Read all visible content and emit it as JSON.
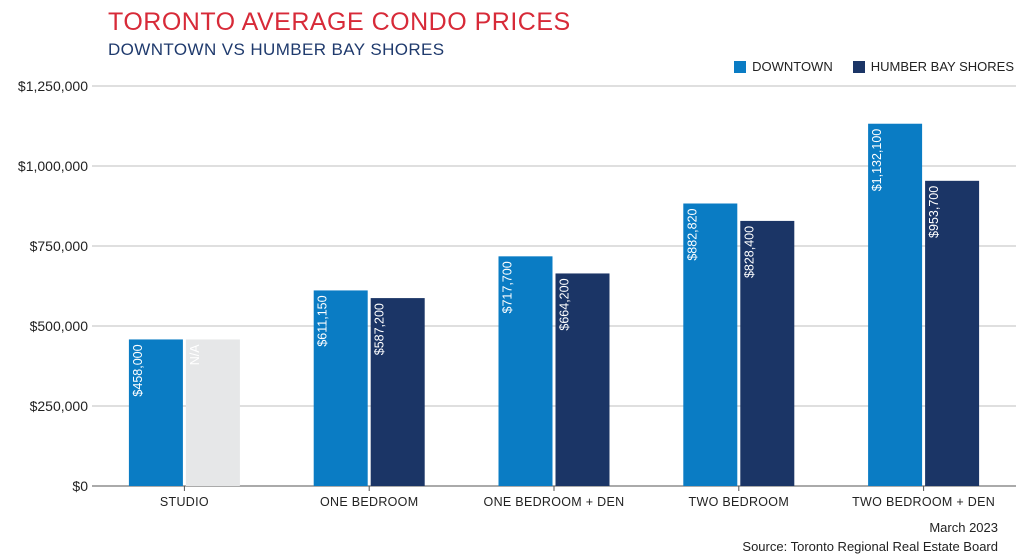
{
  "header": {
    "title": "TORONTO AVERAGE CONDO PRICES",
    "subtitle": "DOWNTOWN VS HUMBER BAY SHORES"
  },
  "footer": {
    "date": "March 2023",
    "source": "Source: Toronto Regional Real Estate Board"
  },
  "colors": {
    "title": "#d72a38",
    "subtitle": "#1f3a6d",
    "downtown": "#0a7cc4",
    "humber": "#1b3566",
    "na": "#e6e7e8",
    "grid": "#bfbfbf"
  },
  "chart_data": {
    "type": "bar",
    "title": "TORONTO AVERAGE CONDO PRICES",
    "subtitle": "DOWNTOWN VS HUMBER BAY SHORES",
    "categories": [
      "STUDIO",
      "ONE BEDROOM",
      "ONE BEDROOM + DEN",
      "TWO BEDROOM",
      "TWO BEDROOM + DEN"
    ],
    "series": [
      {
        "name": "DOWNTOWN",
        "values": [
          458000,
          611150,
          717700,
          882820,
          1132100
        ],
        "labels": [
          "$458,000",
          "$611,150",
          "$717,700",
          "$882,820",
          "$1,132,100"
        ]
      },
      {
        "name": "HUMBER BAY SHORES",
        "values": [
          458000,
          587200,
          664200,
          828400,
          953700
        ],
        "labels": [
          "N/A",
          "$587,200",
          "$664,200",
          "$828,400",
          "$953,700"
        ],
        "not_available": [
          true,
          false,
          false,
          false,
          false
        ]
      }
    ],
    "yticks": [
      0,
      250000,
      500000,
      750000,
      1000000,
      1250000
    ],
    "ytick_labels": [
      "$0",
      "$250,000",
      "$500,000",
      "$750,000",
      "$1,000,000",
      "$1,250,000"
    ],
    "ylim": [
      0,
      1250000
    ],
    "xlabel": "",
    "ylabel": "",
    "grid": "horizontal",
    "legend": "top-right"
  }
}
